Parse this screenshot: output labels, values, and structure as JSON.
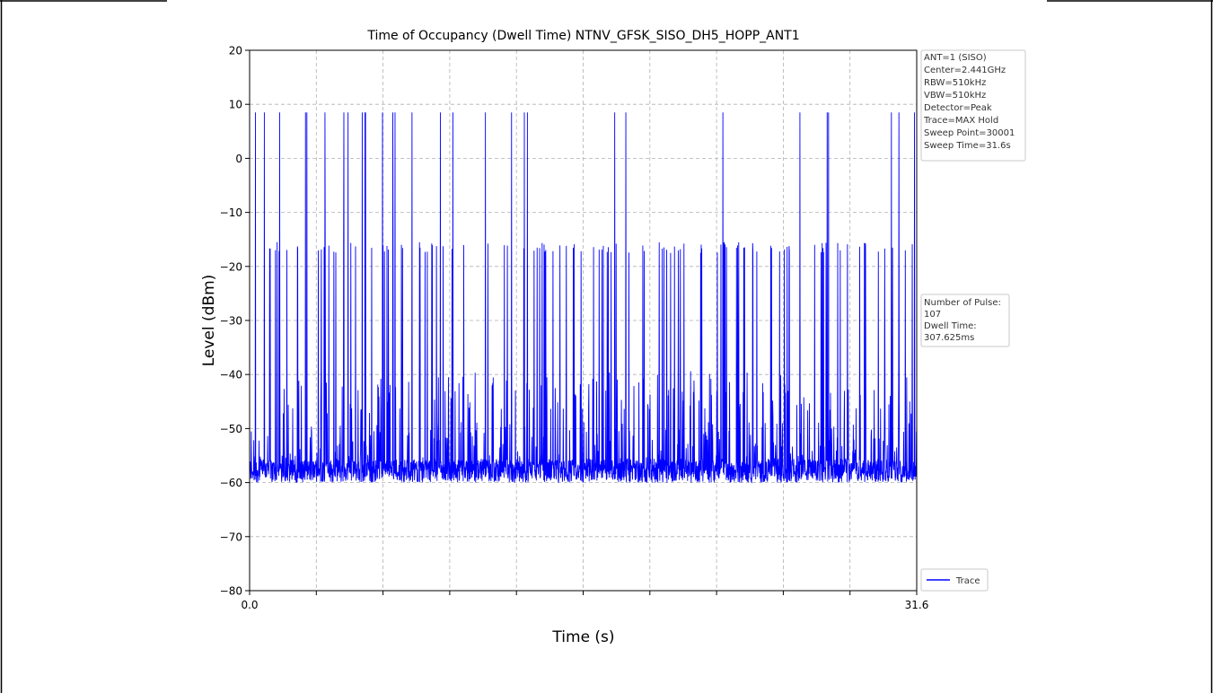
{
  "chart_data": {
    "type": "line",
    "title": "Time of Occupancy (Dwell Time) NTNV_GFSK_SISO_DH5_HOPP_ANT1",
    "xlabel": "Time (s)",
    "ylabel": "Level (dBm)",
    "xlim": [
      0.0,
      31.6
    ],
    "ylim": [
      -80,
      20
    ],
    "x_tick_labels": [
      "0.0",
      "31.6"
    ],
    "y_ticks": [
      20,
      10,
      0,
      -10,
      -20,
      -30,
      -40,
      -50,
      -60,
      -70,
      -80
    ],
    "grid": true,
    "series": [
      {
        "name": "Trace",
        "color": "#0000ff",
        "noise_floor_dbm": [
          -60,
          -52
        ],
        "pulse_levels_dbm": [
          8.5,
          -16.5,
          -17.5,
          -45
        ],
        "sample_count": 30001
      }
    ],
    "legend": {
      "position": "lower-right-outside",
      "entries": [
        "Trace"
      ]
    },
    "info_box": {
      "lines": [
        "ANT=1 (SISO)",
        "Center=2.441GHz",
        "RBW=510kHz",
        "VBW=510kHz",
        "Detector=Peak",
        "Trace=MAX Hold",
        "Sweep Point=30001",
        "Sweep Time=31.6s"
      ]
    },
    "result_box": {
      "lines": [
        "Number of Pulse:",
        "107",
        "Dwell Time:",
        "307.625ms"
      ]
    }
  }
}
